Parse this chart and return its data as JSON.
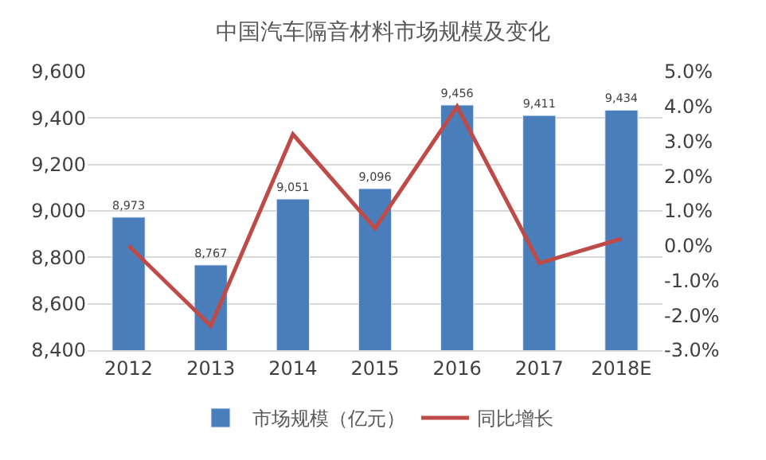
{
  "chart_data": {
    "type": "bar",
    "title": "中国汽车隔音材料市场规模及变化",
    "categories": [
      "2012",
      "2013",
      "2014",
      "2015",
      "2016",
      "2017",
      "2018E"
    ],
    "series": [
      {
        "name": "市场规模（亿元）",
        "color": "#4a7ebb",
        "values": [
          8973,
          8767,
          9051,
          9096,
          9456,
          9411,
          9434
        ],
        "value_labels": [
          "8,973",
          "8,767",
          "9,051",
          "9,096",
          "9,456",
          "9,411",
          "9,434"
        ]
      },
      {
        "name": "同比增长",
        "type": "line",
        "axis": "y2",
        "color": "#be4b48",
        "values": [
          0.0,
          -2.3,
          3.2,
          0.5,
          4.0,
          -0.5,
          0.2
        ]
      }
    ],
    "ylim": [
      8400,
      9600
    ],
    "yticks": [
      {
        "value": 8400,
        "label": "8,400"
      },
      {
        "value": 8600,
        "label": "8,600"
      },
      {
        "value": 8800,
        "label": "8,800"
      },
      {
        "value": 9000,
        "label": "9,000"
      },
      {
        "value": 9200,
        "label": "9,200"
      },
      {
        "value": 9400,
        "label": "9,400"
      },
      {
        "value": 9600,
        "label": "9,600"
      }
    ],
    "y2lim": [
      -3,
      5
    ],
    "y2ticks": [
      {
        "value": -3,
        "label": "-3.0%"
      },
      {
        "value": -2,
        "label": "-2.0%"
      },
      {
        "value": -1,
        "label": "-1.0%"
      },
      {
        "value": 0,
        "label": "0.0%"
      },
      {
        "value": 1,
        "label": "1.0%"
      },
      {
        "value": 2,
        "label": "2.0%"
      },
      {
        "value": 3,
        "label": "3.0%"
      },
      {
        "value": 4,
        "label": "4.0%"
      },
      {
        "value": 5,
        "label": "5.0%"
      }
    ],
    "grid": "y",
    "legend": "bottom",
    "marker": "none",
    "line_style": "solid"
  }
}
